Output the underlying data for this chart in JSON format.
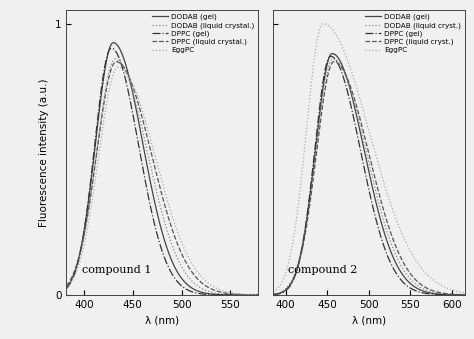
{
  "compound1": {
    "label": "compound 1",
    "xlim": [
      382,
      578
    ],
    "xticks": [
      400,
      450,
      500,
      550
    ],
    "curves": {
      "DODAB_gel": {
        "peak": 430,
        "sigma_l": 18,
        "sigma_r": 30,
        "amp": 0.93
      },
      "DODAB_liq": {
        "peak": 432,
        "sigma_l": 19,
        "sigma_r": 33,
        "amp": 0.87
      },
      "DPPC_gel": {
        "peak": 428,
        "sigma_l": 17,
        "sigma_r": 28,
        "amp": 0.91
      },
      "DPPC_liq": {
        "peak": 433,
        "sigma_l": 20,
        "sigma_r": 36,
        "amp": 0.86
      },
      "EggPC": {
        "peak": 435,
        "sigma_l": 20,
        "sigma_r": 38,
        "amp": 0.84
      }
    }
  },
  "compound2": {
    "label": "compound 2",
    "xlim": [
      385,
      615
    ],
    "xticks": [
      400,
      450,
      500,
      550,
      600
    ],
    "curves": {
      "DODAB_gel": {
        "peak": 456,
        "sigma_l": 20,
        "sigma_r": 38,
        "amp": 0.89
      },
      "DODAB_liq": {
        "peak": 457,
        "sigma_l": 21,
        "sigma_r": 40,
        "amp": 0.87
      },
      "DPPC_gel": {
        "peak": 454,
        "sigma_l": 19,
        "sigma_r": 36,
        "amp": 0.88
      },
      "DPPC_liq": {
        "peak": 458,
        "sigma_l": 21,
        "sigma_r": 42,
        "amp": 0.86
      },
      "EggPC": {
        "peak": 445,
        "sigma_l": 20,
        "sigma_r": 55,
        "amp": 1.0
      }
    }
  },
  "line_styles": {
    "DODAB_gel": {
      "ls": "-",
      "lw": 0.9,
      "color": "#444444",
      "dashes": null
    },
    "DODAB_liq": {
      "ls": ":",
      "lw": 0.9,
      "color": "#888888",
      "dashes": [
        1,
        2
      ]
    },
    "DPPC_gel": {
      "ls": "-.",
      "lw": 0.9,
      "color": "#333333",
      "dashes": null
    },
    "DPPC_liq": {
      "ls": "--",
      "lw": 0.9,
      "color": "#555555",
      "dashes": [
        4,
        2
      ]
    },
    "EggPC": {
      "ls": ":",
      "lw": 0.9,
      "color": "#aaaaaa",
      "dashes": [
        1,
        3
      ]
    }
  },
  "legend_labels1": {
    "DODAB_gel": "DODAB (gel)",
    "DODAB_liq": "DODAB (liquid crystal.)",
    "DPPC_gel": "DPPC (gel)",
    "DPPC_liq": "DPPC (liquid crystal.)",
    "EggPC": "EggPC"
  },
  "legend_labels2": {
    "DODAB_gel": "DODAB (gel)",
    "DODAB_liq": "DODAB (liquid cryst.)",
    "DPPC_gel": "DPPC (gel)",
    "DPPC_liq": "DPPC (liquid cryst.)",
    "EggPC": "EggPC"
  },
  "ylabel": "Fluorescence intensity (a.u.)",
  "xlabel": "λ (nm)",
  "ylim": [
    0,
    1.05
  ],
  "yticks": [
    0,
    1
  ],
  "background_color": "#f0f0f0",
  "figsize": [
    4.74,
    3.39
  ],
  "dpi": 100
}
